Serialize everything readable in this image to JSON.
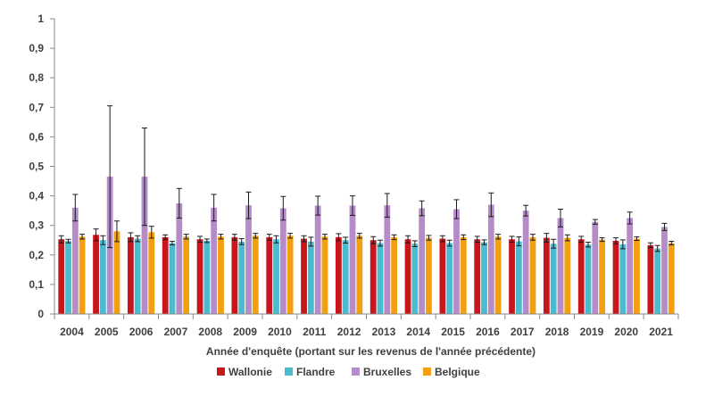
{
  "chart_data": {
    "type": "bar",
    "xlabel": "Année d'enquête (portant sur les revenus de l'année précédente)",
    "ylabel": "",
    "ylim": [
      0,
      1
    ],
    "yticks": [
      "0",
      "0,1",
      "0,2",
      "0,3",
      "0,4",
      "0,5",
      "0,6",
      "0,7",
      "0,8",
      "0,9",
      "1"
    ],
    "grid": false,
    "legend_position": "bottom",
    "categories": [
      "2004",
      "2005",
      "2006",
      "2007",
      "2008",
      "2009",
      "2010",
      "2011",
      "2012",
      "2013",
      "2014",
      "2015",
      "2016",
      "2017",
      "2018",
      "2019",
      "2020",
      "2021"
    ],
    "series": [
      {
        "name": "Wallonie",
        "color": "#c8161d",
        "values": [
          0.253,
          0.268,
          0.26,
          0.26,
          0.253,
          0.26,
          0.26,
          0.255,
          0.26,
          0.25,
          0.253,
          0.255,
          0.253,
          0.253,
          0.258,
          0.253,
          0.248,
          0.233
        ],
        "err": [
          0.012,
          0.02,
          0.015,
          0.008,
          0.01,
          0.01,
          0.01,
          0.01,
          0.012,
          0.012,
          0.012,
          0.01,
          0.01,
          0.01,
          0.015,
          0.01,
          0.01,
          0.008
        ]
      },
      {
        "name": "Flandre",
        "color": "#4bbbcf",
        "values": [
          0.247,
          0.25,
          0.255,
          0.24,
          0.248,
          0.245,
          0.253,
          0.245,
          0.25,
          0.24,
          0.238,
          0.24,
          0.243,
          0.246,
          0.238,
          0.235,
          0.236,
          0.222
        ],
        "err": [
          0.006,
          0.015,
          0.01,
          0.006,
          0.006,
          0.01,
          0.012,
          0.015,
          0.01,
          0.01,
          0.01,
          0.01,
          0.008,
          0.015,
          0.015,
          0.008,
          0.015,
          0.01
        ]
      },
      {
        "name": "Bruxelles",
        "color": "#b68cc8",
        "values": [
          0.36,
          0.465,
          0.465,
          0.375,
          0.36,
          0.368,
          0.358,
          0.367,
          0.367,
          0.368,
          0.358,
          0.355,
          0.37,
          0.35,
          0.325,
          0.312,
          0.325,
          0.295
        ],
        "err": [
          0.045,
          0.24,
          0.165,
          0.05,
          0.045,
          0.045,
          0.04,
          0.032,
          0.033,
          0.04,
          0.025,
          0.032,
          0.04,
          0.018,
          0.03,
          0.008,
          0.02,
          0.012
        ]
      },
      {
        "name": "Belgique",
        "color": "#f2a00f",
        "values": [
          0.262,
          0.28,
          0.277,
          0.262,
          0.262,
          0.265,
          0.265,
          0.262,
          0.265,
          0.26,
          0.258,
          0.26,
          0.262,
          0.26,
          0.258,
          0.252,
          0.255,
          0.24
        ],
        "err": [
          0.008,
          0.035,
          0.02,
          0.008,
          0.008,
          0.008,
          0.008,
          0.008,
          0.008,
          0.008,
          0.008,
          0.008,
          0.008,
          0.01,
          0.01,
          0.006,
          0.006,
          0.006
        ]
      }
    ]
  }
}
